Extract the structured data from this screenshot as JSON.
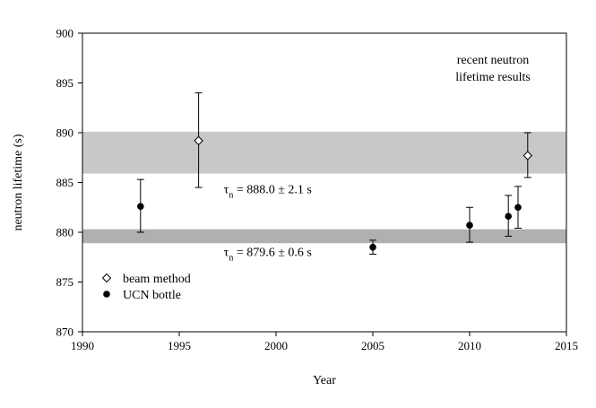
{
  "chart_data": {
    "type": "scatter",
    "xlabel": "Year",
    "ylabel": "neutron lifetime (s)",
    "xlim": [
      1990,
      2015
    ],
    "ylim": [
      870,
      900
    ],
    "xticks": [
      "1990",
      "1995",
      "2000",
      "2005",
      "2010",
      "2015"
    ],
    "yticks": [
      "870",
      "875",
      "880",
      "885",
      "890",
      "895",
      "900"
    ],
    "annotation": [
      "recent neutron",
      "lifetime results"
    ],
    "series": [
      {
        "name": "beam method",
        "marker": "open-diamond",
        "points": [
          {
            "x": 1996,
            "y": 889.2,
            "err_low": 884.5,
            "err_high": 894.0
          },
          {
            "x": 2013,
            "y": 887.7,
            "err_low": 885.5,
            "err_high": 890.0
          }
        ]
      },
      {
        "name": "UCN bottle",
        "marker": "filled-circle",
        "points": [
          {
            "x": 1993,
            "y": 882.6,
            "err_low": 880.0,
            "err_high": 885.3
          },
          {
            "x": 2005,
            "y": 878.5,
            "err_low": 877.8,
            "err_high": 879.2
          },
          {
            "x": 2010,
            "y": 880.7,
            "err_low": 879.0,
            "err_high": 882.5
          },
          {
            "x": 2012,
            "y": 881.6,
            "err_low": 879.6,
            "err_high": 883.7
          },
          {
            "x": 2012.5,
            "y": 882.5,
            "err_low": 880.4,
            "err_high": 884.6
          }
        ]
      }
    ],
    "bands": [
      {
        "y_low": 885.9,
        "y_high": 890.1,
        "color": "#c8c8c8",
        "label_symbol": "τ",
        "label_sub": "n",
        "label_value": " = 888.0 ± 2.1 s",
        "label_x": 1997.3,
        "label_y": 883.9
      },
      {
        "x0": 1990,
        "y_low": 878.9,
        "y_high": 880.3,
        "color": "#b0b0b0",
        "label_symbol": "τ",
        "label_sub": "n",
        "label_value": " = 879.6 ± 0.6 s",
        "label_x": 1997.3,
        "label_y": 877.6
      }
    ],
    "legend_position": "bottom-left"
  }
}
